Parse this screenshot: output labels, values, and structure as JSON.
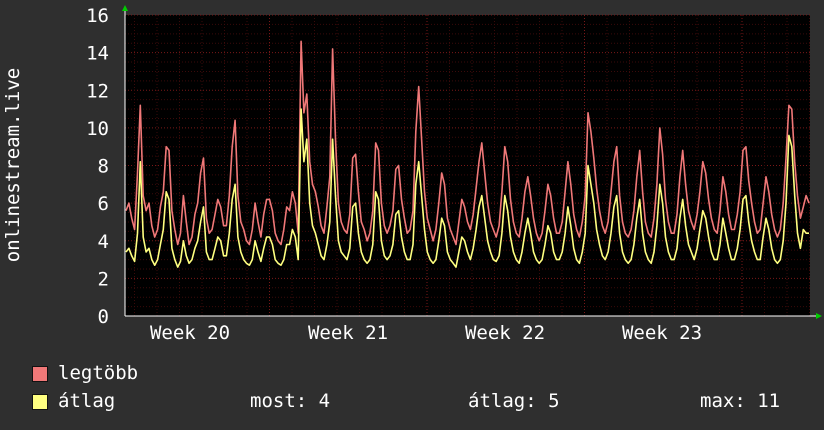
{
  "chart_data": {
    "type": "line",
    "ylabel": "onlinestream.live",
    "ylim": [
      0,
      16
    ],
    "yticks": [
      0,
      2,
      4,
      6,
      8,
      10,
      12,
      14,
      16
    ],
    "x_tick_labels": [
      "Week 20",
      "Week 21",
      "Week 22",
      "Week 23"
    ],
    "grid": true,
    "colors": {
      "max": "#f07878",
      "avg": "#ffff80",
      "background": "#000000",
      "grid": "#5a1010"
    },
    "series": [
      {
        "name": "legtöbb",
        "color": "#f07878",
        "values": [
          5.6,
          6.0,
          5.2,
          4.6,
          7.6,
          11.2,
          6.4,
          5.6,
          6.0,
          4.8,
          4.2,
          4.6,
          5.8,
          6.6,
          9.0,
          8.8,
          5.6,
          4.6,
          3.8,
          4.4,
          6.4,
          5.0,
          3.8,
          4.2,
          5.4,
          6.0,
          7.6,
          8.4,
          5.2,
          4.4,
          4.6,
          5.4,
          6.2,
          5.8,
          4.8,
          4.8,
          6.4,
          9.0,
          10.4,
          6.4,
          5.0,
          4.6,
          4.0,
          3.8,
          4.6,
          6.0,
          5.0,
          4.2,
          5.4,
          6.2,
          6.2,
          5.6,
          4.4,
          4.0,
          3.8,
          4.6,
          5.8,
          5.6,
          6.6,
          6.0,
          4.4,
          14.6,
          10.8,
          11.8,
          8.2,
          7.0,
          6.6,
          5.8,
          4.8,
          4.4,
          5.8,
          7.4,
          14.2,
          9.4,
          6.0,
          5.0,
          4.6,
          4.4,
          5.4,
          8.4,
          8.6,
          6.6,
          5.0,
          4.6,
          4.0,
          4.4,
          5.6,
          9.2,
          8.8,
          6.0,
          4.8,
          4.4,
          4.8,
          5.6,
          7.8,
          8.0,
          6.2,
          5.2,
          4.4,
          4.6,
          5.6,
          9.8,
          12.2,
          9.4,
          6.6,
          5.2,
          4.6,
          4.0,
          4.6,
          6.0,
          7.6,
          7.0,
          5.2,
          4.6,
          4.2,
          3.8,
          5.0,
          6.2,
          5.8,
          5.0,
          4.6,
          5.4,
          6.8,
          8.2,
          9.2,
          7.6,
          6.0,
          5.0,
          4.6,
          4.2,
          4.8,
          6.6,
          9.0,
          8.2,
          6.2,
          5.0,
          4.4,
          4.2,
          5.2,
          6.6,
          7.4,
          6.4,
          5.2,
          4.4,
          4.0,
          4.4,
          5.6,
          7.0,
          6.4,
          5.2,
          4.4,
          4.4,
          5.0,
          6.6,
          8.2,
          7.0,
          5.4,
          4.6,
          4.2,
          5.0,
          6.4,
          10.8,
          9.8,
          8.4,
          6.8,
          5.6,
          4.8,
          4.4,
          5.0,
          6.6,
          8.2,
          9.0,
          6.4,
          5.0,
          4.4,
          4.2,
          4.6,
          5.6,
          7.4,
          8.8,
          6.6,
          5.0,
          4.4,
          4.2,
          5.2,
          7.0,
          10.0,
          8.6,
          6.2,
          5.0,
          4.4,
          4.4,
          5.4,
          7.4,
          8.8,
          7.0,
          5.6,
          5.0,
          4.6,
          5.4,
          6.6,
          8.2,
          7.6,
          6.2,
          5.2,
          4.6,
          4.4,
          5.6,
          7.4,
          6.6,
          5.4,
          4.6,
          4.6,
          5.4,
          6.6,
          8.8,
          9.0,
          7.2,
          6.0,
          5.0,
          4.4,
          4.6,
          6.0,
          7.4,
          6.6,
          5.4,
          4.6,
          4.2,
          4.6,
          6.0,
          8.4,
          11.2,
          11.0,
          8.2,
          6.4,
          5.2,
          5.8,
          6.4,
          6.0
        ]
      },
      {
        "name": "átlag",
        "color": "#ffff80",
        "values": [
          3.4,
          3.6,
          3.2,
          2.9,
          4.4,
          8.2,
          4.2,
          3.4,
          3.6,
          3.0,
          2.7,
          3.0,
          3.8,
          4.6,
          6.6,
          6.2,
          3.6,
          3.0,
          2.6,
          2.9,
          4.0,
          3.2,
          2.8,
          3.0,
          3.6,
          4.0,
          5.0,
          5.8,
          3.4,
          3.0,
          3.0,
          3.6,
          4.2,
          4.0,
          3.2,
          3.2,
          4.4,
          6.2,
          7.0,
          4.2,
          3.4,
          3.0,
          2.8,
          2.7,
          3.0,
          4.0,
          3.4,
          2.9,
          3.6,
          4.2,
          4.2,
          3.8,
          3.0,
          2.8,
          2.7,
          3.0,
          3.8,
          3.8,
          4.6,
          4.2,
          3.0,
          11.0,
          8.2,
          9.4,
          6.0,
          4.8,
          4.4,
          3.8,
          3.2,
          3.0,
          3.8,
          5.0,
          9.4,
          6.4,
          4.0,
          3.4,
          3.2,
          3.0,
          3.6,
          5.8,
          6.0,
          4.4,
          3.4,
          3.0,
          2.8,
          3.0,
          3.8,
          6.6,
          6.2,
          4.0,
          3.2,
          3.0,
          3.2,
          3.8,
          5.4,
          5.6,
          4.2,
          3.4,
          3.0,
          3.0,
          3.8,
          7.0,
          8.2,
          6.4,
          4.6,
          3.4,
          3.0,
          2.8,
          3.0,
          4.0,
          5.2,
          4.8,
          3.4,
          3.0,
          2.8,
          2.6,
          3.4,
          4.2,
          4.0,
          3.4,
          3.0,
          3.6,
          4.6,
          5.8,
          6.4,
          5.2,
          4.0,
          3.4,
          3.0,
          2.9,
          3.2,
          4.4,
          6.4,
          5.6,
          4.2,
          3.4,
          3.0,
          2.8,
          3.4,
          4.4,
          5.2,
          4.4,
          3.4,
          3.0,
          2.8,
          3.0,
          3.8,
          4.8,
          4.4,
          3.4,
          3.0,
          3.0,
          3.4,
          4.4,
          5.8,
          4.8,
          3.6,
          3.0,
          2.8,
          3.4,
          4.4,
          8.0,
          7.0,
          6.0,
          4.6,
          3.8,
          3.2,
          3.0,
          3.4,
          4.4,
          5.8,
          6.4,
          4.4,
          3.4,
          3.0,
          2.8,
          3.0,
          3.8,
          5.2,
          6.2,
          4.4,
          3.4,
          3.0,
          2.8,
          3.4,
          4.8,
          7.0,
          6.0,
          4.2,
          3.4,
          3.0,
          3.0,
          3.6,
          5.2,
          6.2,
          4.8,
          3.8,
          3.4,
          3.0,
          3.6,
          4.6,
          5.6,
          5.2,
          4.2,
          3.4,
          3.0,
          3.0,
          3.8,
          5.2,
          4.4,
          3.6,
          3.0,
          3.0,
          3.6,
          4.6,
          6.2,
          6.4,
          5.0,
          4.0,
          3.4,
          3.0,
          3.0,
          4.2,
          5.2,
          4.6,
          3.6,
          3.0,
          2.8,
          3.0,
          4.0,
          6.0,
          9.6,
          9.0,
          6.4,
          4.4,
          3.6,
          4.6,
          4.4,
          4.4
        ]
      }
    ]
  },
  "legend": {
    "max_label": "legtöbb",
    "avg_label": "átlag",
    "now_text": "most: 4",
    "avg_text": "átlag: 5",
    "max_text": "max: 11"
  }
}
